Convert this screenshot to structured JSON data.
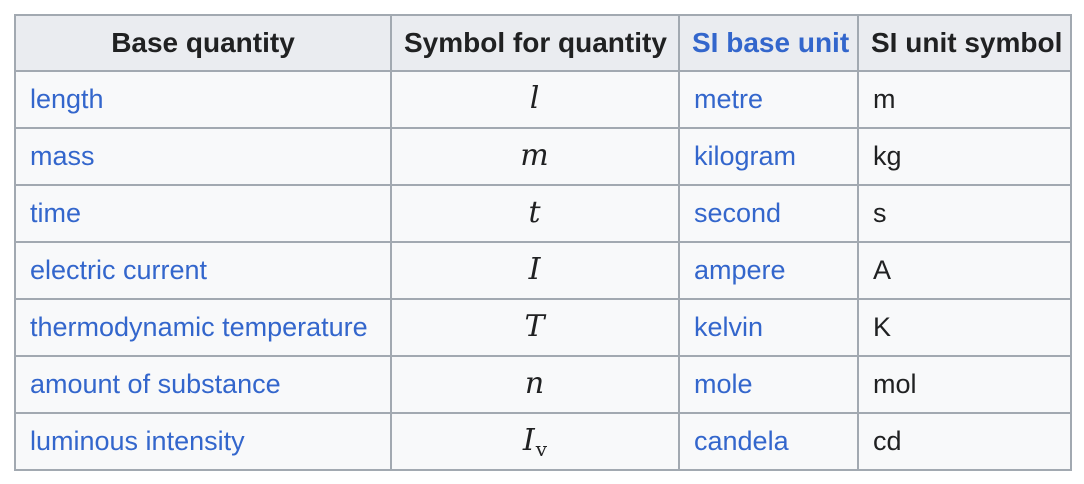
{
  "table": {
    "title_semantic": "SI base quantities",
    "colors": {
      "header_background": "#eaecf0",
      "body_background": "#f8f9fa",
      "border": "#a2a9b1",
      "text": "#202122",
      "link": "#3366cc",
      "page_background": "#ffffff"
    },
    "headers": [
      {
        "label": "Base quantity",
        "is_link": false
      },
      {
        "label": "Symbol for quantity",
        "is_link": false
      },
      {
        "label": "SI base unit",
        "is_link": true
      },
      {
        "label": "SI unit symbol",
        "is_link": false
      }
    ],
    "rows": [
      {
        "quantity": "length",
        "symbol": "l",
        "symbol_sub": "",
        "unit": "metre",
        "unit_symbol": "m"
      },
      {
        "quantity": "mass",
        "symbol": "m",
        "symbol_sub": "",
        "unit": "kilogram",
        "unit_symbol": "kg"
      },
      {
        "quantity": "time",
        "symbol": "t",
        "symbol_sub": "",
        "unit": "second",
        "unit_symbol": "s"
      },
      {
        "quantity": "electric current",
        "symbol": "I",
        "symbol_sub": "",
        "unit": "ampere",
        "unit_symbol": "A"
      },
      {
        "quantity": "thermodynamic temperature",
        "symbol": "T",
        "symbol_sub": "",
        "unit": "kelvin",
        "unit_symbol": "K"
      },
      {
        "quantity": "amount of substance",
        "symbol": "n",
        "symbol_sub": "",
        "unit": "mole",
        "unit_symbol": "mol"
      },
      {
        "quantity": "luminous intensity",
        "symbol": "I",
        "symbol_sub": "v",
        "unit": "candela",
        "unit_symbol": "cd"
      }
    ]
  }
}
